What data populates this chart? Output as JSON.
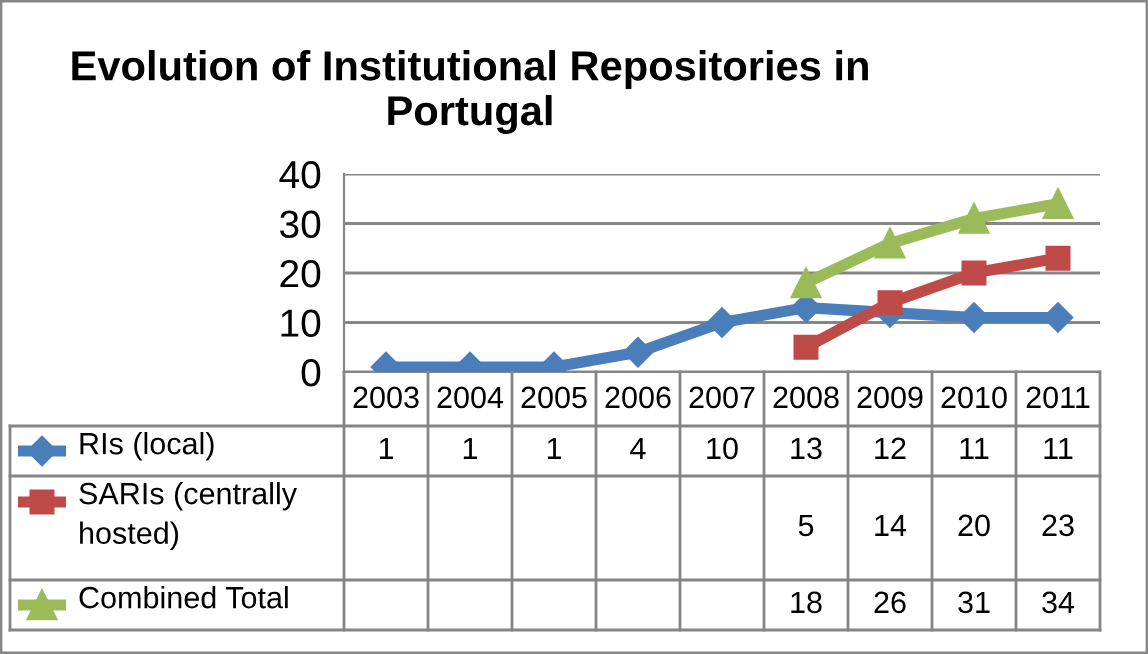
{
  "chart_data": {
    "type": "line",
    "title": "Evolution of Institutional Repositories in Portugal",
    "categories": [
      "2003",
      "2004",
      "2005",
      "2006",
      "2007",
      "2008",
      "2009",
      "2010",
      "2011"
    ],
    "series": [
      {
        "name": "RIs (local)",
        "color": "#4a7ebb",
        "marker": "diamond",
        "values": [
          1,
          1,
          1,
          4,
          10,
          13,
          12,
          11,
          11
        ]
      },
      {
        "name": "SARIs (centrally\nhosted)",
        "color": "#be4b48",
        "marker": "square",
        "values": [
          null,
          null,
          null,
          null,
          null,
          5,
          14,
          20,
          23
        ]
      },
      {
        "name": "Combined Total",
        "color": "#9bbb59",
        "marker": "triangle",
        "values": [
          null,
          null,
          null,
          null,
          null,
          18,
          26,
          31,
          34
        ]
      }
    ],
    "ylim": [
      0,
      40
    ],
    "yticks": [
      0,
      10,
      20,
      30,
      40
    ],
    "grid": "y",
    "legend": "bottom",
    "data_labels": true
  }
}
